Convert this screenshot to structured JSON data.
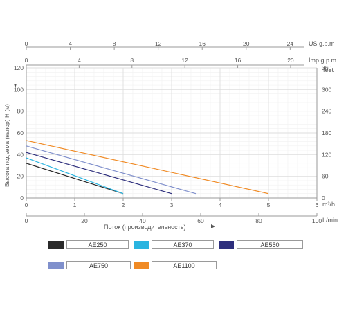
{
  "chart_data": {
    "type": "line",
    "grid": true,
    "axes": {
      "us_gpm": {
        "ticks": [
          "0",
          "4",
          "8",
          "12",
          "16",
          "20",
          "24"
        ],
        "label": "US g.p.m"
      },
      "imp_gpm": {
        "ticks": [
          "0",
          "4",
          "8",
          "12",
          "16",
          "20"
        ],
        "label": "Imp g.p.m"
      },
      "y_left": {
        "ticks": [
          "0",
          "20",
          "40",
          "60",
          "80",
          "100",
          "120"
        ],
        "label": "Высота подъема (напор) H (м)",
        "ylim": [
          0,
          120
        ]
      },
      "y_right": {
        "ticks": [
          "0",
          "60",
          "120",
          "180",
          "240",
          "300",
          "360"
        ],
        "label": "feet"
      },
      "x_m3h": {
        "ticks": [
          "0",
          "1",
          "2",
          "3",
          "4",
          "5",
          "6"
        ],
        "label": "m³/h",
        "xlim": [
          0,
          6
        ]
      },
      "x_lmin": {
        "ticks": [
          "0",
          "20",
          "40",
          "60",
          "80",
          "100"
        ],
        "label": "L/min",
        "xlim": [
          0,
          100
        ]
      },
      "xlabel": "Поток (производительность)"
    },
    "series": [
      {
        "name": "AE250",
        "color": "#2a2a2a",
        "x": [
          0,
          2
        ],
        "y": [
          32,
          4
        ]
      },
      {
        "name": "AE370",
        "color": "#2ab4e0",
        "x": [
          0,
          2
        ],
        "y": [
          37,
          4
        ]
      },
      {
        "name": "AE550",
        "color": "#2e2f7d",
        "x": [
          0,
          3
        ],
        "y": [
          42,
          4
        ]
      },
      {
        "name": "AE750",
        "color": "#8090cc",
        "x": [
          0,
          3.5
        ],
        "y": [
          48,
          4
        ]
      },
      {
        "name": "AE1100",
        "color": "#f08a24",
        "x": [
          0,
          5
        ],
        "y": [
          53,
          4
        ]
      }
    ]
  }
}
